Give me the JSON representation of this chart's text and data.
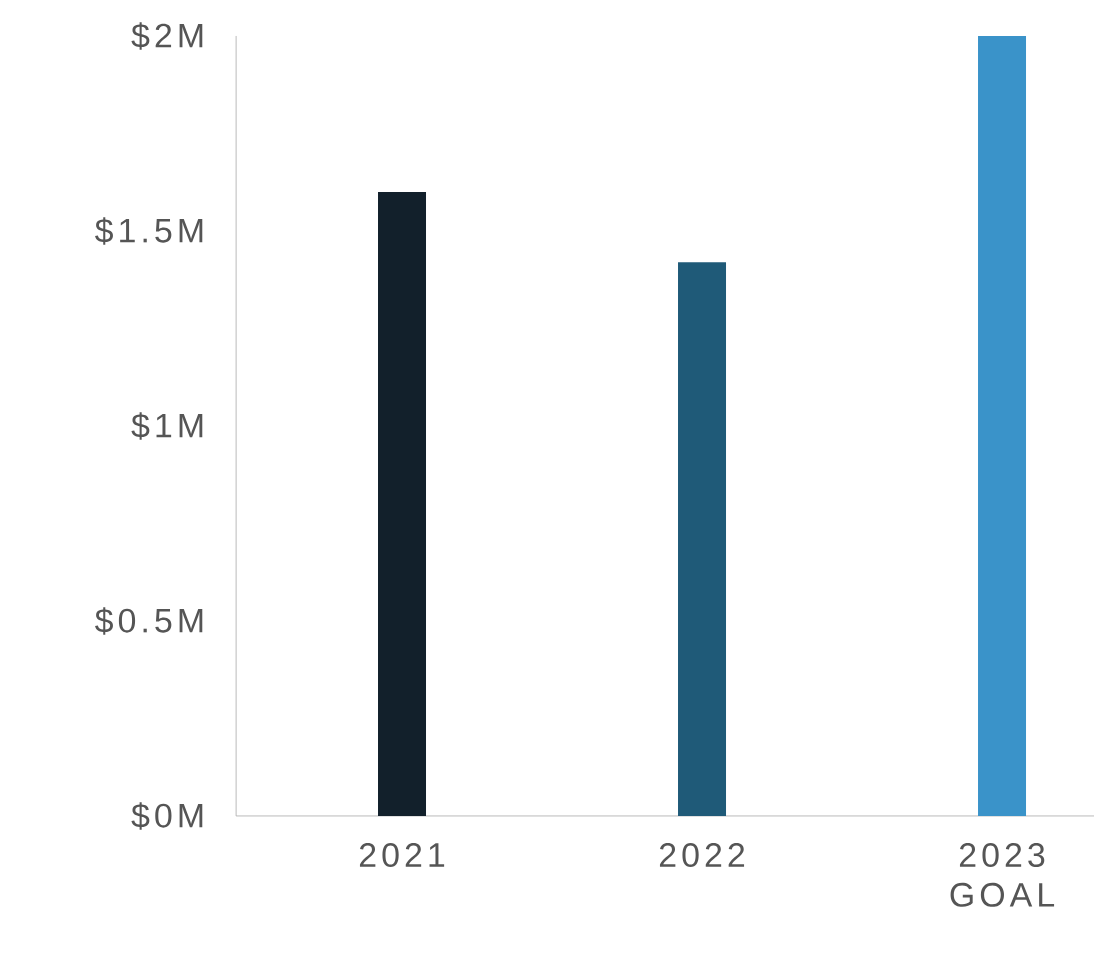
{
  "chart_data": {
    "type": "bar",
    "categories": [
      "2021",
      "2022",
      "2023 GOAL"
    ],
    "values": [
      1.6,
      1.42,
      2.0
    ],
    "colors": [
      "#12202b",
      "#1f5a78",
      "#3a93c9"
    ],
    "ylim": [
      0,
      2
    ],
    "yticks": [
      {
        "value": 0,
        "label": "$0M"
      },
      {
        "value": 0.5,
        "label": "$0.5M"
      },
      {
        "value": 1,
        "label": "$1M"
      },
      {
        "value": 1.5,
        "label": "$1.5M"
      },
      {
        "value": 2,
        "label": "$2M"
      }
    ],
    "grid": false
  }
}
